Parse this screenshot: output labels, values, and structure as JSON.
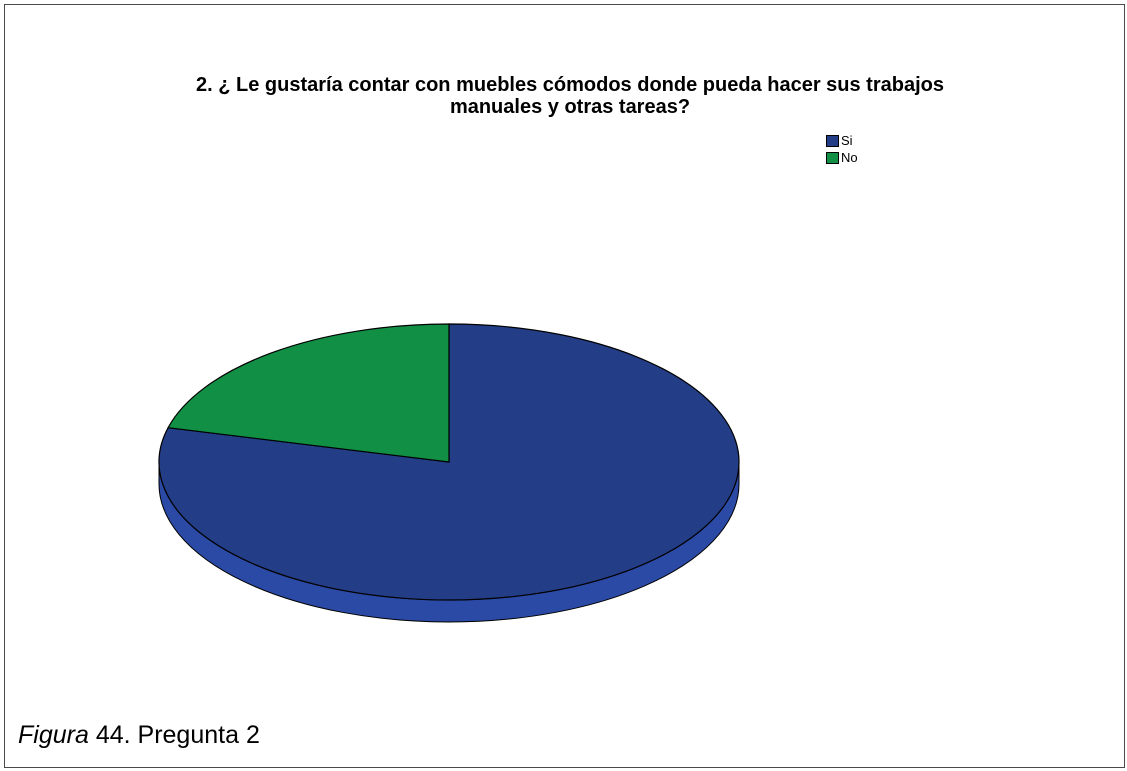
{
  "chart_data": {
    "type": "pie",
    "title": "2. ¿ Le gustaría contar con muebles cómodos donde pueda hacer sus trabajos manuales y otras tareas?",
    "title_line1": "2. ¿ Le gustaría contar con muebles cómodos donde pueda hacer sus trabajos",
    "title_line2": "manuales y otras tareas?",
    "categories": [
      "Si",
      "No"
    ],
    "values": [
      79,
      21
    ],
    "colors": [
      "#233d86",
      "#118f45"
    ],
    "side_color": "#2b4aa6",
    "legend_position": "top-right",
    "style": "3d"
  },
  "caption": {
    "figure_word": "Figura",
    "number": "44",
    "rest": ". Pregunta 2"
  }
}
